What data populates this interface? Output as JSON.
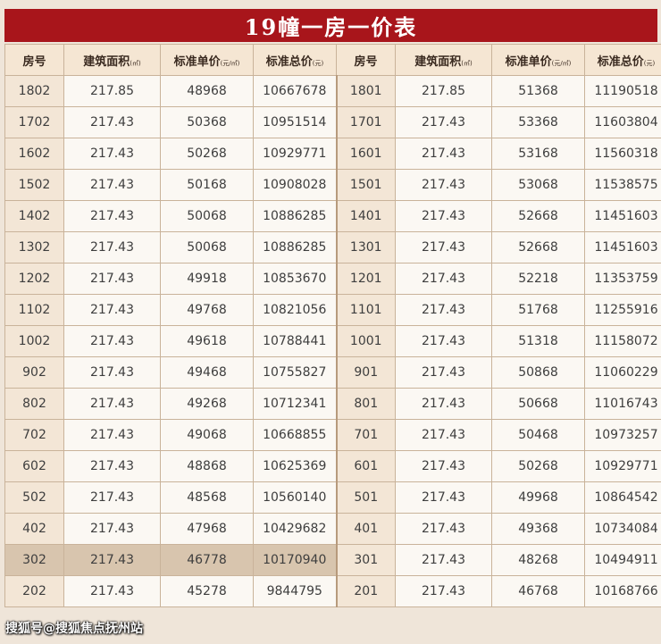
{
  "title": "19幢一房一价表",
  "headers": [
    {
      "main": "房号",
      "unit": ""
    },
    {
      "main": "建筑面积",
      "unit": "(㎡)"
    },
    {
      "main": "标准单价",
      "unit": "(元/㎡)"
    },
    {
      "main": "标准总价",
      "unit": "(元)"
    },
    {
      "main": "房号",
      "unit": ""
    },
    {
      "main": "建筑面积",
      "unit": "(㎡)"
    },
    {
      "main": "标准单价",
      "unit": "(元/㎡)"
    },
    {
      "main": "标准总价",
      "unit": "(元)"
    }
  ],
  "rows": [
    [
      "1802",
      "217.85",
      "48968",
      "10667678",
      "1801",
      "217.85",
      "51368",
      "11190518"
    ],
    [
      "1702",
      "217.43",
      "50368",
      "10951514",
      "1701",
      "217.43",
      "53368",
      "11603804"
    ],
    [
      "1602",
      "217.43",
      "50268",
      "10929771",
      "1601",
      "217.43",
      "53168",
      "11560318"
    ],
    [
      "1502",
      "217.43",
      "50168",
      "10908028",
      "1501",
      "217.43",
      "53068",
      "11538575"
    ],
    [
      "1402",
      "217.43",
      "50068",
      "10886285",
      "1401",
      "217.43",
      "52668",
      "11451603"
    ],
    [
      "1302",
      "217.43",
      "50068",
      "10886285",
      "1301",
      "217.43",
      "52668",
      "11451603"
    ],
    [
      "1202",
      "217.43",
      "49918",
      "10853670",
      "1201",
      "217.43",
      "52218",
      "11353759"
    ],
    [
      "1102",
      "217.43",
      "49768",
      "10821056",
      "1101",
      "217.43",
      "51768",
      "11255916"
    ],
    [
      "1002",
      "217.43",
      "49618",
      "10788441",
      "1001",
      "217.43",
      "51318",
      "11158072"
    ],
    [
      "902",
      "217.43",
      "49468",
      "10755827",
      "901",
      "217.43",
      "50868",
      "11060229"
    ],
    [
      "802",
      "217.43",
      "49268",
      "10712341",
      "801",
      "217.43",
      "50668",
      "11016743"
    ],
    [
      "702",
      "217.43",
      "49068",
      "10668855",
      "701",
      "217.43",
      "50468",
      "10973257"
    ],
    [
      "602",
      "217.43",
      "48868",
      "10625369",
      "601",
      "217.43",
      "50268",
      "10929771"
    ],
    [
      "502",
      "217.43",
      "48568",
      "10560140",
      "501",
      "217.43",
      "49968",
      "10864542"
    ],
    [
      "402",
      "217.43",
      "47968",
      "10429682",
      "401",
      "217.43",
      "49368",
      "10734084"
    ],
    [
      "302",
      "217.43",
      "46778",
      "10170940",
      "301",
      "217.43",
      "48268",
      "10494911"
    ],
    [
      "202",
      "217.43",
      "45278",
      "9844795",
      "201",
      "217.43",
      "46768",
      "10168766"
    ]
  ],
  "highlighted_row_index": 15,
  "colors": {
    "title_bg": "#a8151b",
    "header_bg": "#f5e6d3",
    "highlight_bg": "#d8c5ae"
  },
  "watermark": "搜狐号@搜狐焦点抚州站"
}
